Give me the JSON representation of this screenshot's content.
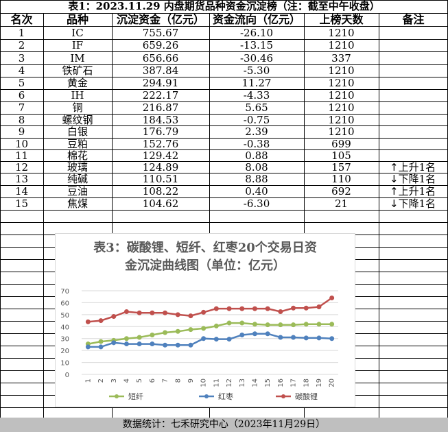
{
  "title": "表1：2023.11.29 内盘期货品种资金沉淀榜（注：截至中午收盘）",
  "headers": [
    "名次",
    "品种",
    "沉淀资金（亿元）",
    "资金流向（亿元）",
    "上榜天数",
    "备注"
  ],
  "rows": [
    {
      "rank": "1",
      "name": "IC",
      "capital": "755.67",
      "flow": "-26.10",
      "days": "1210",
      "note": ""
    },
    {
      "rank": "2",
      "name": "IF",
      "capital": "659.26",
      "flow": "-13.15",
      "days": "1210",
      "note": ""
    },
    {
      "rank": "3",
      "name": "IM",
      "capital": "656.66",
      "flow": "-30.46",
      "days": "337",
      "note": ""
    },
    {
      "rank": "4",
      "name": "铁矿石",
      "capital": "387.84",
      "flow": "-5.30",
      "days": "1210",
      "note": ""
    },
    {
      "rank": "5",
      "name": "黄金",
      "capital": "294.91",
      "flow": "11.27",
      "days": "1210",
      "note": ""
    },
    {
      "rank": "6",
      "name": "IH",
      "capital": "222.17",
      "flow": "-4.33",
      "days": "1210",
      "note": ""
    },
    {
      "rank": "7",
      "name": "铜",
      "capital": "216.87",
      "flow": "5.65",
      "days": "1210",
      "note": ""
    },
    {
      "rank": "8",
      "name": "螺纹钢",
      "capital": "184.53",
      "flow": "-0.75",
      "days": "1210",
      "note": ""
    },
    {
      "rank": "9",
      "name": "白银",
      "capital": "176.79",
      "flow": "2.39",
      "days": "1210",
      "note": ""
    },
    {
      "rank": "10",
      "name": "豆粕",
      "capital": "152.76",
      "flow": "-0.38",
      "days": "699",
      "note": ""
    },
    {
      "rank": "11",
      "name": "棉花",
      "capital": "129.42",
      "flow": "0.88",
      "days": "105",
      "note": ""
    },
    {
      "rank": "12",
      "name": "玻璃",
      "capital": "124.89",
      "flow": "8.08",
      "days": "157",
      "arrow": "↑",
      "note": "上升1名"
    },
    {
      "rank": "13",
      "name": "纯碱",
      "capital": "110.51",
      "flow": "8.88",
      "days": "110",
      "arrow": "↓",
      "note": "下降1名"
    },
    {
      "rank": "14",
      "name": "豆油",
      "capital": "108.22",
      "flow": "0.40",
      "days": "692",
      "arrow": "↑",
      "note": "上升1名"
    },
    {
      "rank": "15",
      "name": "焦煤",
      "capital": "104.62",
      "flow": "-6.30",
      "days": "21",
      "arrow": "↓",
      "note": "下降1名"
    }
  ],
  "footer": "数据统计：七禾研究中心（2023年11月29日）",
  "colors": {
    "duanxian": "#9bbb59",
    "hongzao": "#4f81bd",
    "tansuanli": "#c0504d",
    "grid": "#d9d9d9",
    "footer_bg": "#bfbfbf"
  },
  "chart_data": {
    "type": "line",
    "title": "表3：碳酸锂、短纤、红枣20个交易日资金沉淀曲线图（单位：亿元）",
    "x": [
      "1",
      "2",
      "3",
      "4",
      "5",
      "6",
      "7",
      "8",
      "9",
      "10",
      "11",
      "12",
      "13",
      "14",
      "15",
      "16",
      "17",
      "18",
      "19",
      "20"
    ],
    "ylim": [
      0,
      70
    ],
    "yticks": [
      "0",
      "10",
      "20",
      "30",
      "40",
      "50",
      "60",
      "70"
    ],
    "grid": true,
    "legend_position": "bottom",
    "series": [
      {
        "name": "短纤",
        "values": [
          25.5,
          27.5,
          28.5,
          30,
          31,
          33,
          35,
          36,
          37.5,
          38.5,
          40.5,
          43,
          43,
          42,
          41.5,
          41.5,
          41.5,
          42,
          42,
          42
        ]
      },
      {
        "name": "红枣",
        "values": [
          23,
          23,
          26.5,
          25.5,
          25.5,
          25.5,
          24.5,
          24.5,
          24.5,
          30,
          29.5,
          29.5,
          33,
          34,
          34,
          31,
          31,
          30.5,
          30.5,
          30
        ]
      },
      {
        "name": "碳酸锂",
        "values": [
          44,
          45,
          48.5,
          52.5,
          51.5,
          51.5,
          51.5,
          50,
          49,
          52,
          55,
          55,
          55,
          55,
          55,
          52.5,
          55.5,
          55.5,
          56.5,
          64
        ]
      }
    ]
  }
}
